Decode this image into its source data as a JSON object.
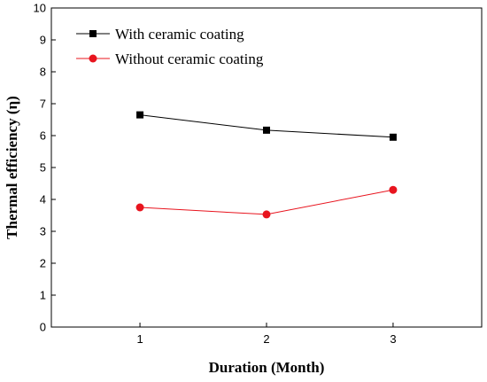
{
  "chart_data": {
    "type": "line",
    "xlabel": "Duration (Month)",
    "ylabel": "Thermal efficiency (η)",
    "x": [
      1,
      2,
      3
    ],
    "xlim": [
      0.3,
      3.7
    ],
    "ylim": [
      0,
      10
    ],
    "xticks": [
      "1",
      "2",
      "3"
    ],
    "yticks": [
      "0",
      "1",
      "2",
      "3",
      "4",
      "5",
      "6",
      "7",
      "8",
      "9",
      "10"
    ],
    "grid": false,
    "legend_position": "top-left",
    "series": [
      {
        "name": "With ceramic coating",
        "values": [
          6.65,
          6.17,
          5.95
        ],
        "color": "#000000",
        "marker": "square"
      },
      {
        "name": "Without ceramic coating",
        "values": [
          3.75,
          3.53,
          4.3
        ],
        "color": "#e8141e",
        "marker": "circle"
      }
    ]
  }
}
